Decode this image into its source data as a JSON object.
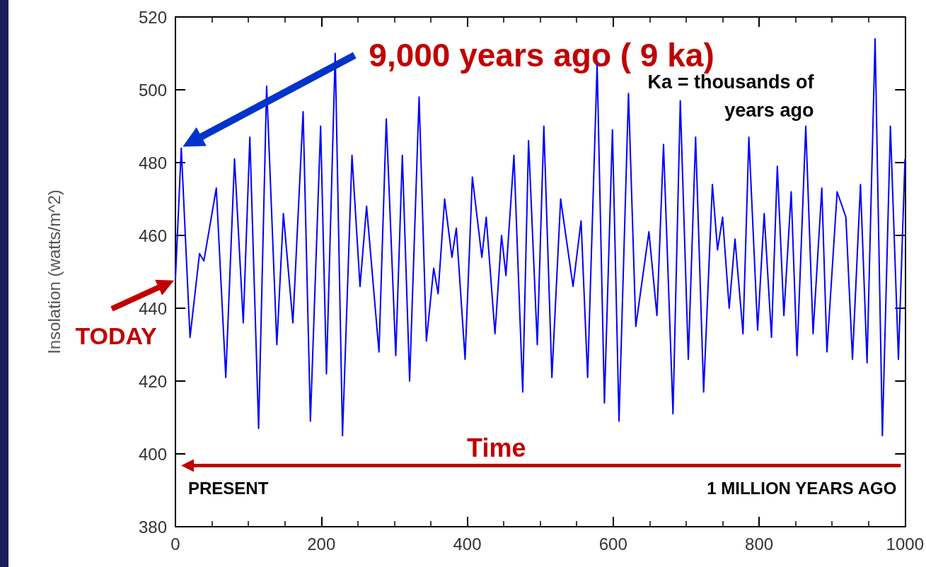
{
  "chart_data": {
    "type": "line",
    "ylabel": "Insolation (watts/m^2)",
    "xlim": [
      0,
      1000
    ],
    "xticks": [
      0,
      200,
      400,
      600,
      800,
      1000
    ],
    "ylim": [
      380,
      520
    ],
    "yticks": [
      380,
      400,
      420,
      440,
      460,
      480,
      500,
      520
    ],
    "grid": false,
    "marker": "none",
    "line_style": "solid",
    "series": [
      {
        "color": "#0000ff",
        "x": [
          0,
          8,
          20,
          33,
          39,
          56,
          69,
          81,
          93,
          102,
          114,
          125,
          139,
          148,
          161,
          175,
          185,
          199,
          207,
          219,
          229,
          242,
          253,
          262,
          279,
          289,
          302,
          311,
          321,
          334,
          344,
          354,
          360,
          369,
          379,
          385,
          397,
          407,
          420,
          426,
          438,
          447,
          453,
          464,
          476,
          484,
          496,
          505,
          516,
          528,
          545,
          556,
          565,
          578,
          588,
          599,
          608,
          621,
          631,
          649,
          660,
          669,
          682,
          692,
          703,
          713,
          724,
          736,
          743,
          750,
          759,
          767,
          778,
          786,
          798,
          807,
          817,
          825,
          834,
          844,
          852,
          864,
          874,
          886,
          893,
          907,
          919,
          928,
          939,
          948,
          959,
          969,
          980,
          991,
          1000
        ],
        "values": [
          448,
          484,
          432,
          455,
          453,
          473,
          421,
          481,
          436,
          487,
          407,
          501,
          430,
          466,
          436,
          494,
          409,
          490,
          422,
          510,
          405,
          482,
          446,
          468,
          428,
          492,
          427,
          482,
          420,
          498,
          431,
          451,
          444,
          470,
          454,
          462,
          426,
          476,
          454,
          465,
          433,
          460,
          449,
          482,
          417,
          486,
          430,
          490,
          421,
          470,
          446,
          464,
          421,
          507,
          414,
          489,
          409,
          499,
          435,
          461,
          438,
          485,
          411,
          497,
          426,
          487,
          417,
          474,
          456,
          465,
          440,
          459,
          433,
          487,
          434,
          466,
          432,
          479,
          438,
          472,
          427,
          490,
          433,
          473,
          428,
          472,
          465,
          426,
          474,
          425,
          514,
          405,
          490,
          426,
          481
        ]
      }
    ],
    "annotations": [
      "9,000 years ago ( 9 ka)",
      {
        "text": "TODAY",
        "x": 0,
        "y": 448
      },
      "Ka = thousands of\nyears ago",
      "Time",
      "PRESENT",
      "1 MILLION YEARS AGO"
    ]
  }
}
